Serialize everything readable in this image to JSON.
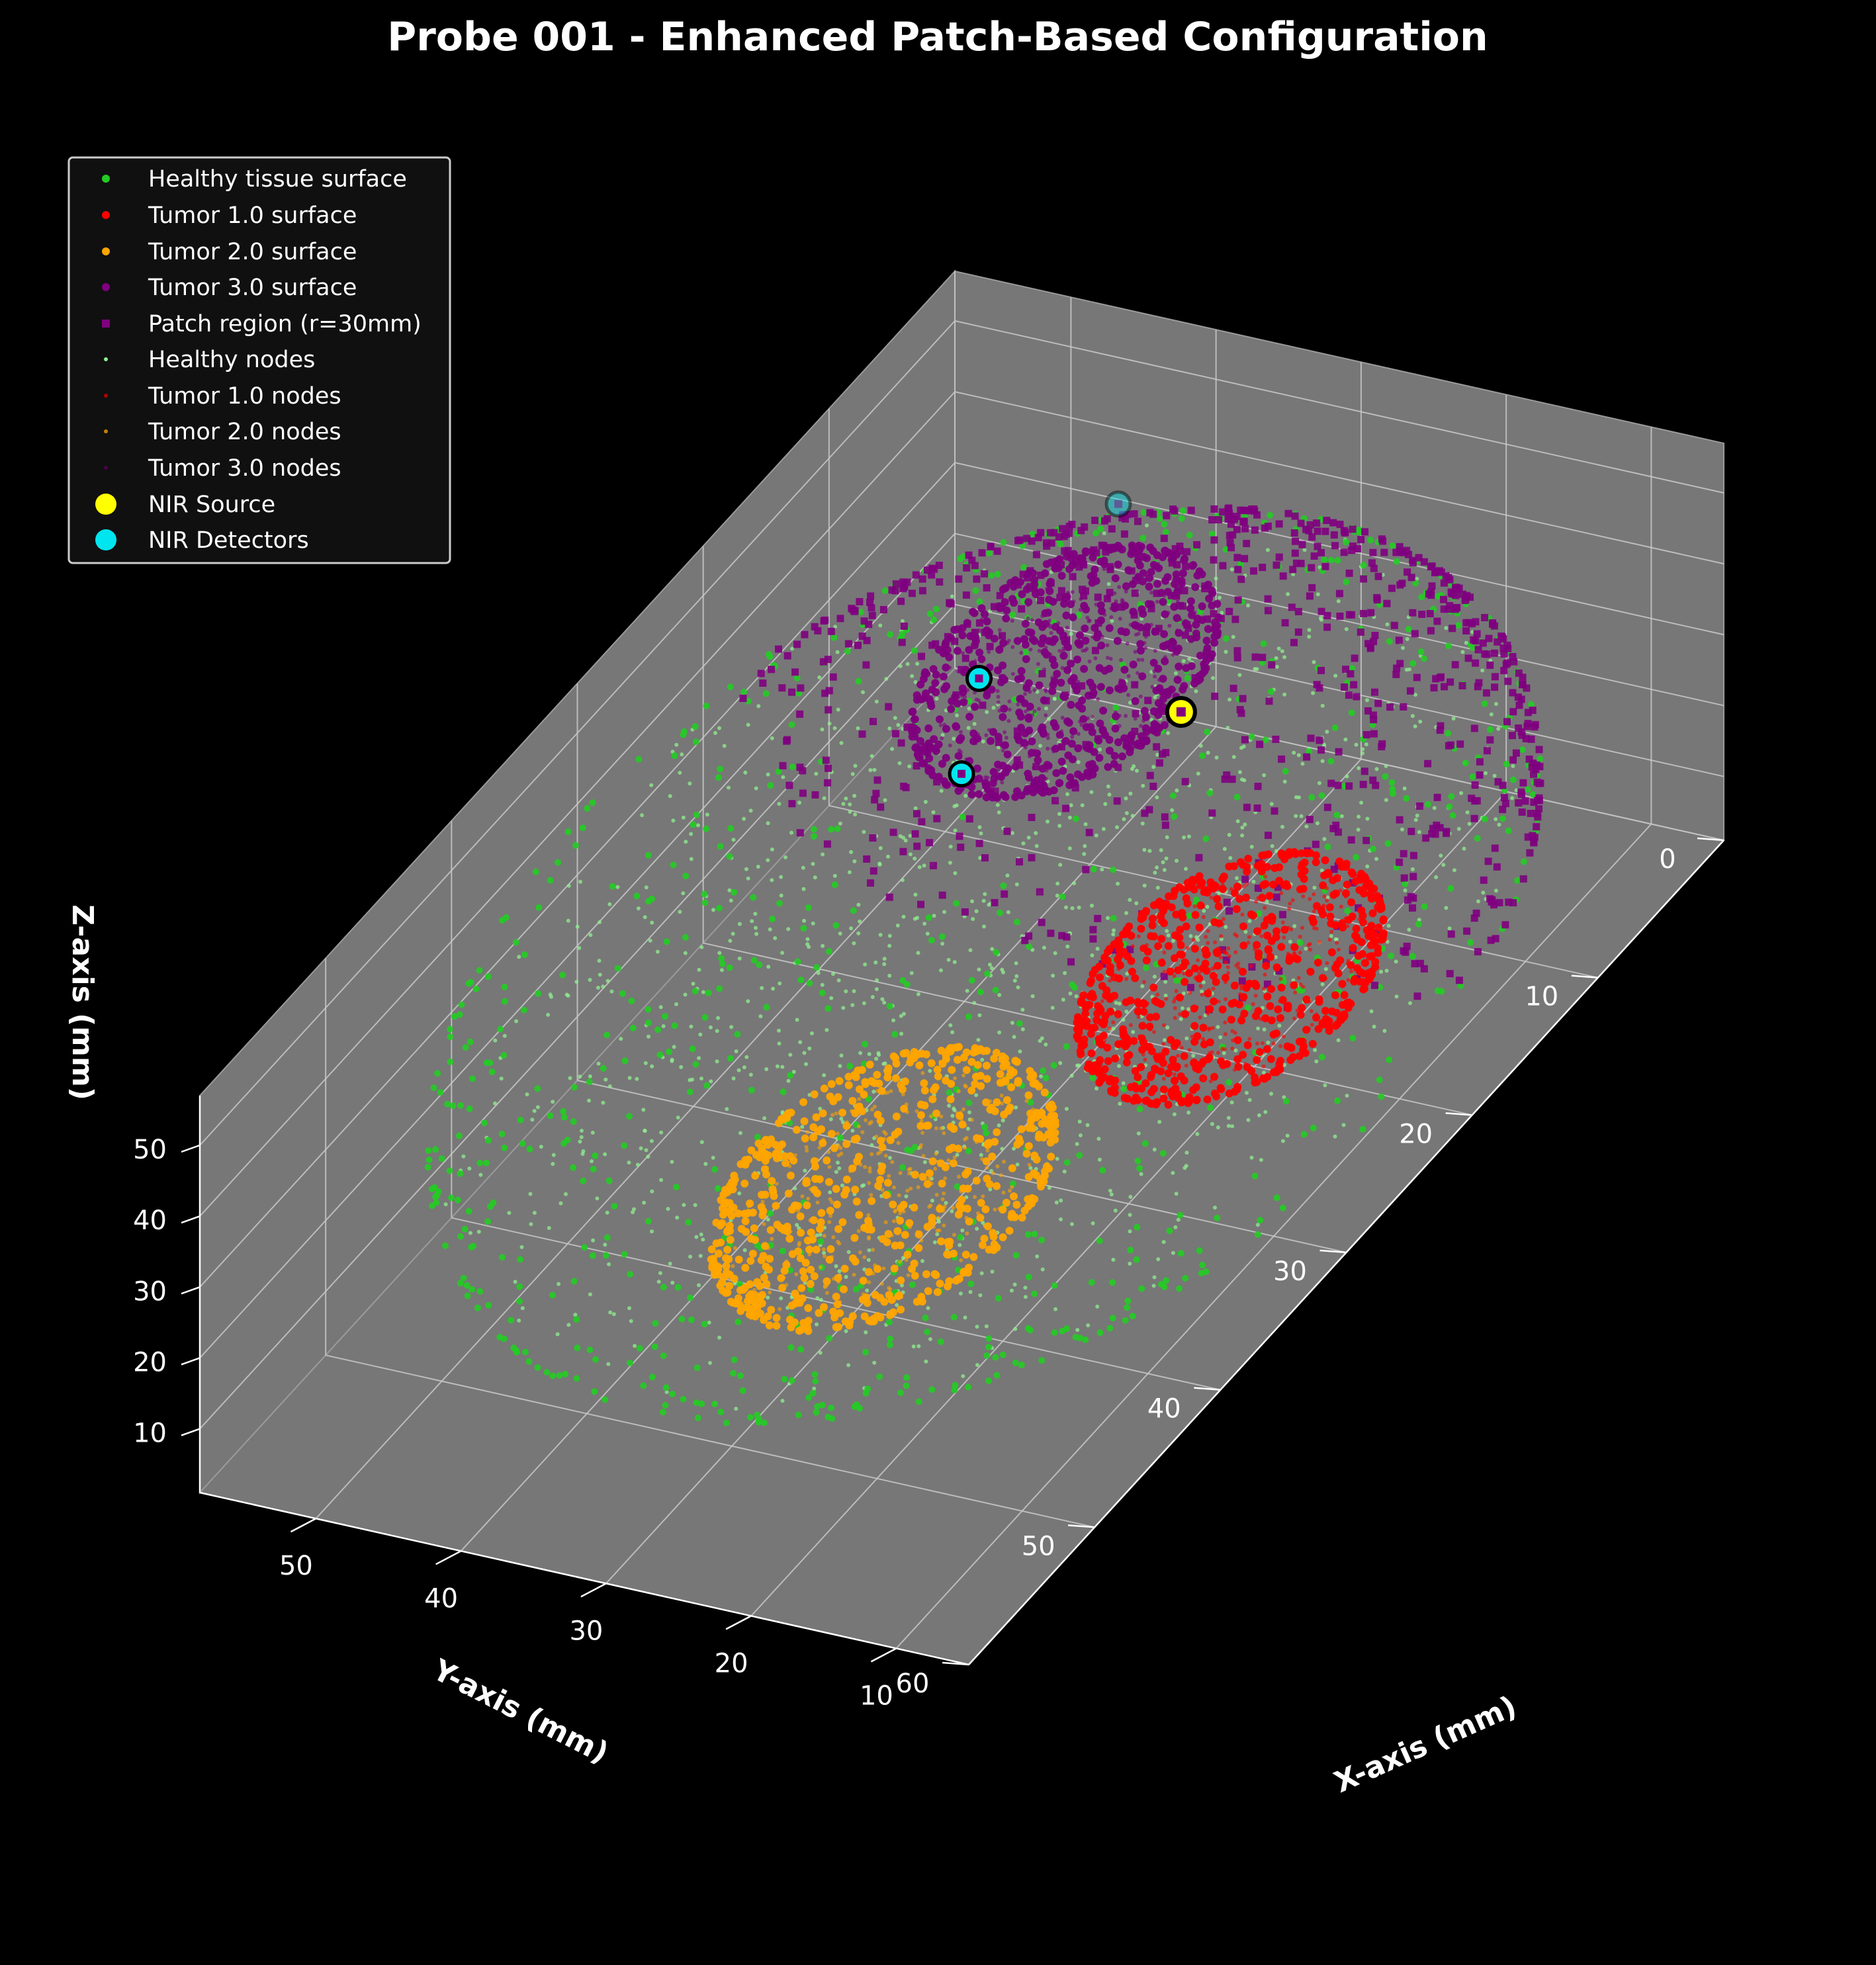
{
  "chart_data": {
    "type": "scatter",
    "title": "Probe 001 - Enhanced Patch-Based Configuration",
    "xlabel": "X-axis (mm)",
    "ylabel": "Y-axis (mm)",
    "zlabel": "Z-axis (mm)",
    "xticks": [
      "10",
      "20",
      "30",
      "40",
      "50"
    ],
    "yticks": [
      "0",
      "10",
      "20",
      "30",
      "40",
      "50",
      "60"
    ],
    "zticks": [
      "10",
      "20",
      "30",
      "40",
      "50"
    ],
    "xlim": [
      5,
      58
    ],
    "ylim": [
      0,
      60
    ],
    "zlim": [
      1,
      57
    ],
    "grid": true,
    "legend_position": "top-left",
    "colors": {
      "background": "#000000",
      "pane": "#777777",
      "healthy": "#22cc22",
      "healthy_nodes": "#90ee90",
      "tumor1": "#ff0000",
      "tumor2": "#ffa500",
      "tumor3": "#800080",
      "patch": "#800080",
      "source": "#ffff00",
      "detector": "#00e5ee"
    },
    "tissue": {
      "center": [
        30,
        30,
        30
      ],
      "radius": 29
    },
    "patch_region": {
      "center": [
        30,
        5,
        30
      ],
      "radius": 30
    },
    "tumors": [
      {
        "name": "Tumor 1.0",
        "center": [
          13,
          30,
          36
        ],
        "radius": 8
      },
      {
        "name": "Tumor 2.0",
        "center": [
          30,
          38,
          14
        ],
        "radius": 9
      },
      {
        "name": "Tumor 3.0",
        "center": [
          40,
          12,
          32
        ],
        "radius": 8
      }
    ],
    "source": [
      32,
      12,
      30
    ],
    "detectors": [
      [
        45,
        2,
        34
      ],
      [
        52,
        5,
        12
      ],
      [
        48,
        11,
        12
      ]
    ],
    "series": [
      {
        "name": "Healthy tissue surface",
        "marker": "circle"
      },
      {
        "name": "Tumor 1.0 surface",
        "marker": "circle"
      },
      {
        "name": "Tumor 2.0 surface",
        "marker": "circle"
      },
      {
        "name": "Tumor 3.0 surface",
        "marker": "circle"
      },
      {
        "name": "Patch region (r=30mm)",
        "marker": "square"
      },
      {
        "name": "Healthy nodes",
        "marker": "dot"
      },
      {
        "name": "Tumor 1.0 nodes",
        "marker": "dot"
      },
      {
        "name": "Tumor 2.0 nodes",
        "marker": "dot"
      },
      {
        "name": "Tumor 3.0 nodes",
        "marker": "dot"
      },
      {
        "name": "NIR Source",
        "marker": "big-circle"
      },
      {
        "name": "NIR Detectors",
        "marker": "big-circle"
      }
    ]
  }
}
